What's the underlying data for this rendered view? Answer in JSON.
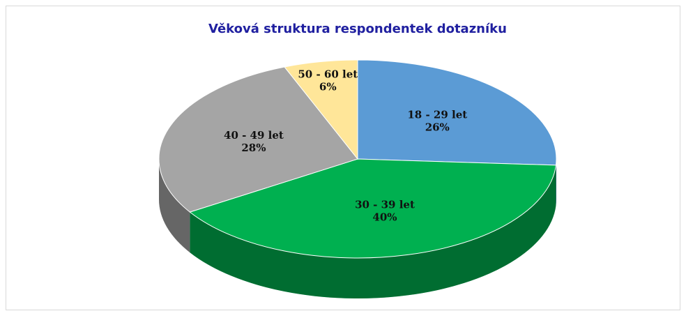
{
  "chart_data": {
    "type": "pie3d",
    "title": "Věková struktura respondentek dotazníku",
    "categories": [
      "18 - 29 let",
      "30 - 39 let",
      "40 - 49 let",
      "50 - 60 let"
    ],
    "values": [
      26,
      40,
      28,
      6
    ],
    "value_labels": [
      "26%",
      "40%",
      "28%",
      "6%"
    ],
    "colors": [
      "#5b9bd5",
      "#00b050",
      "#a5a5a5",
      "#ffe699"
    ]
  }
}
